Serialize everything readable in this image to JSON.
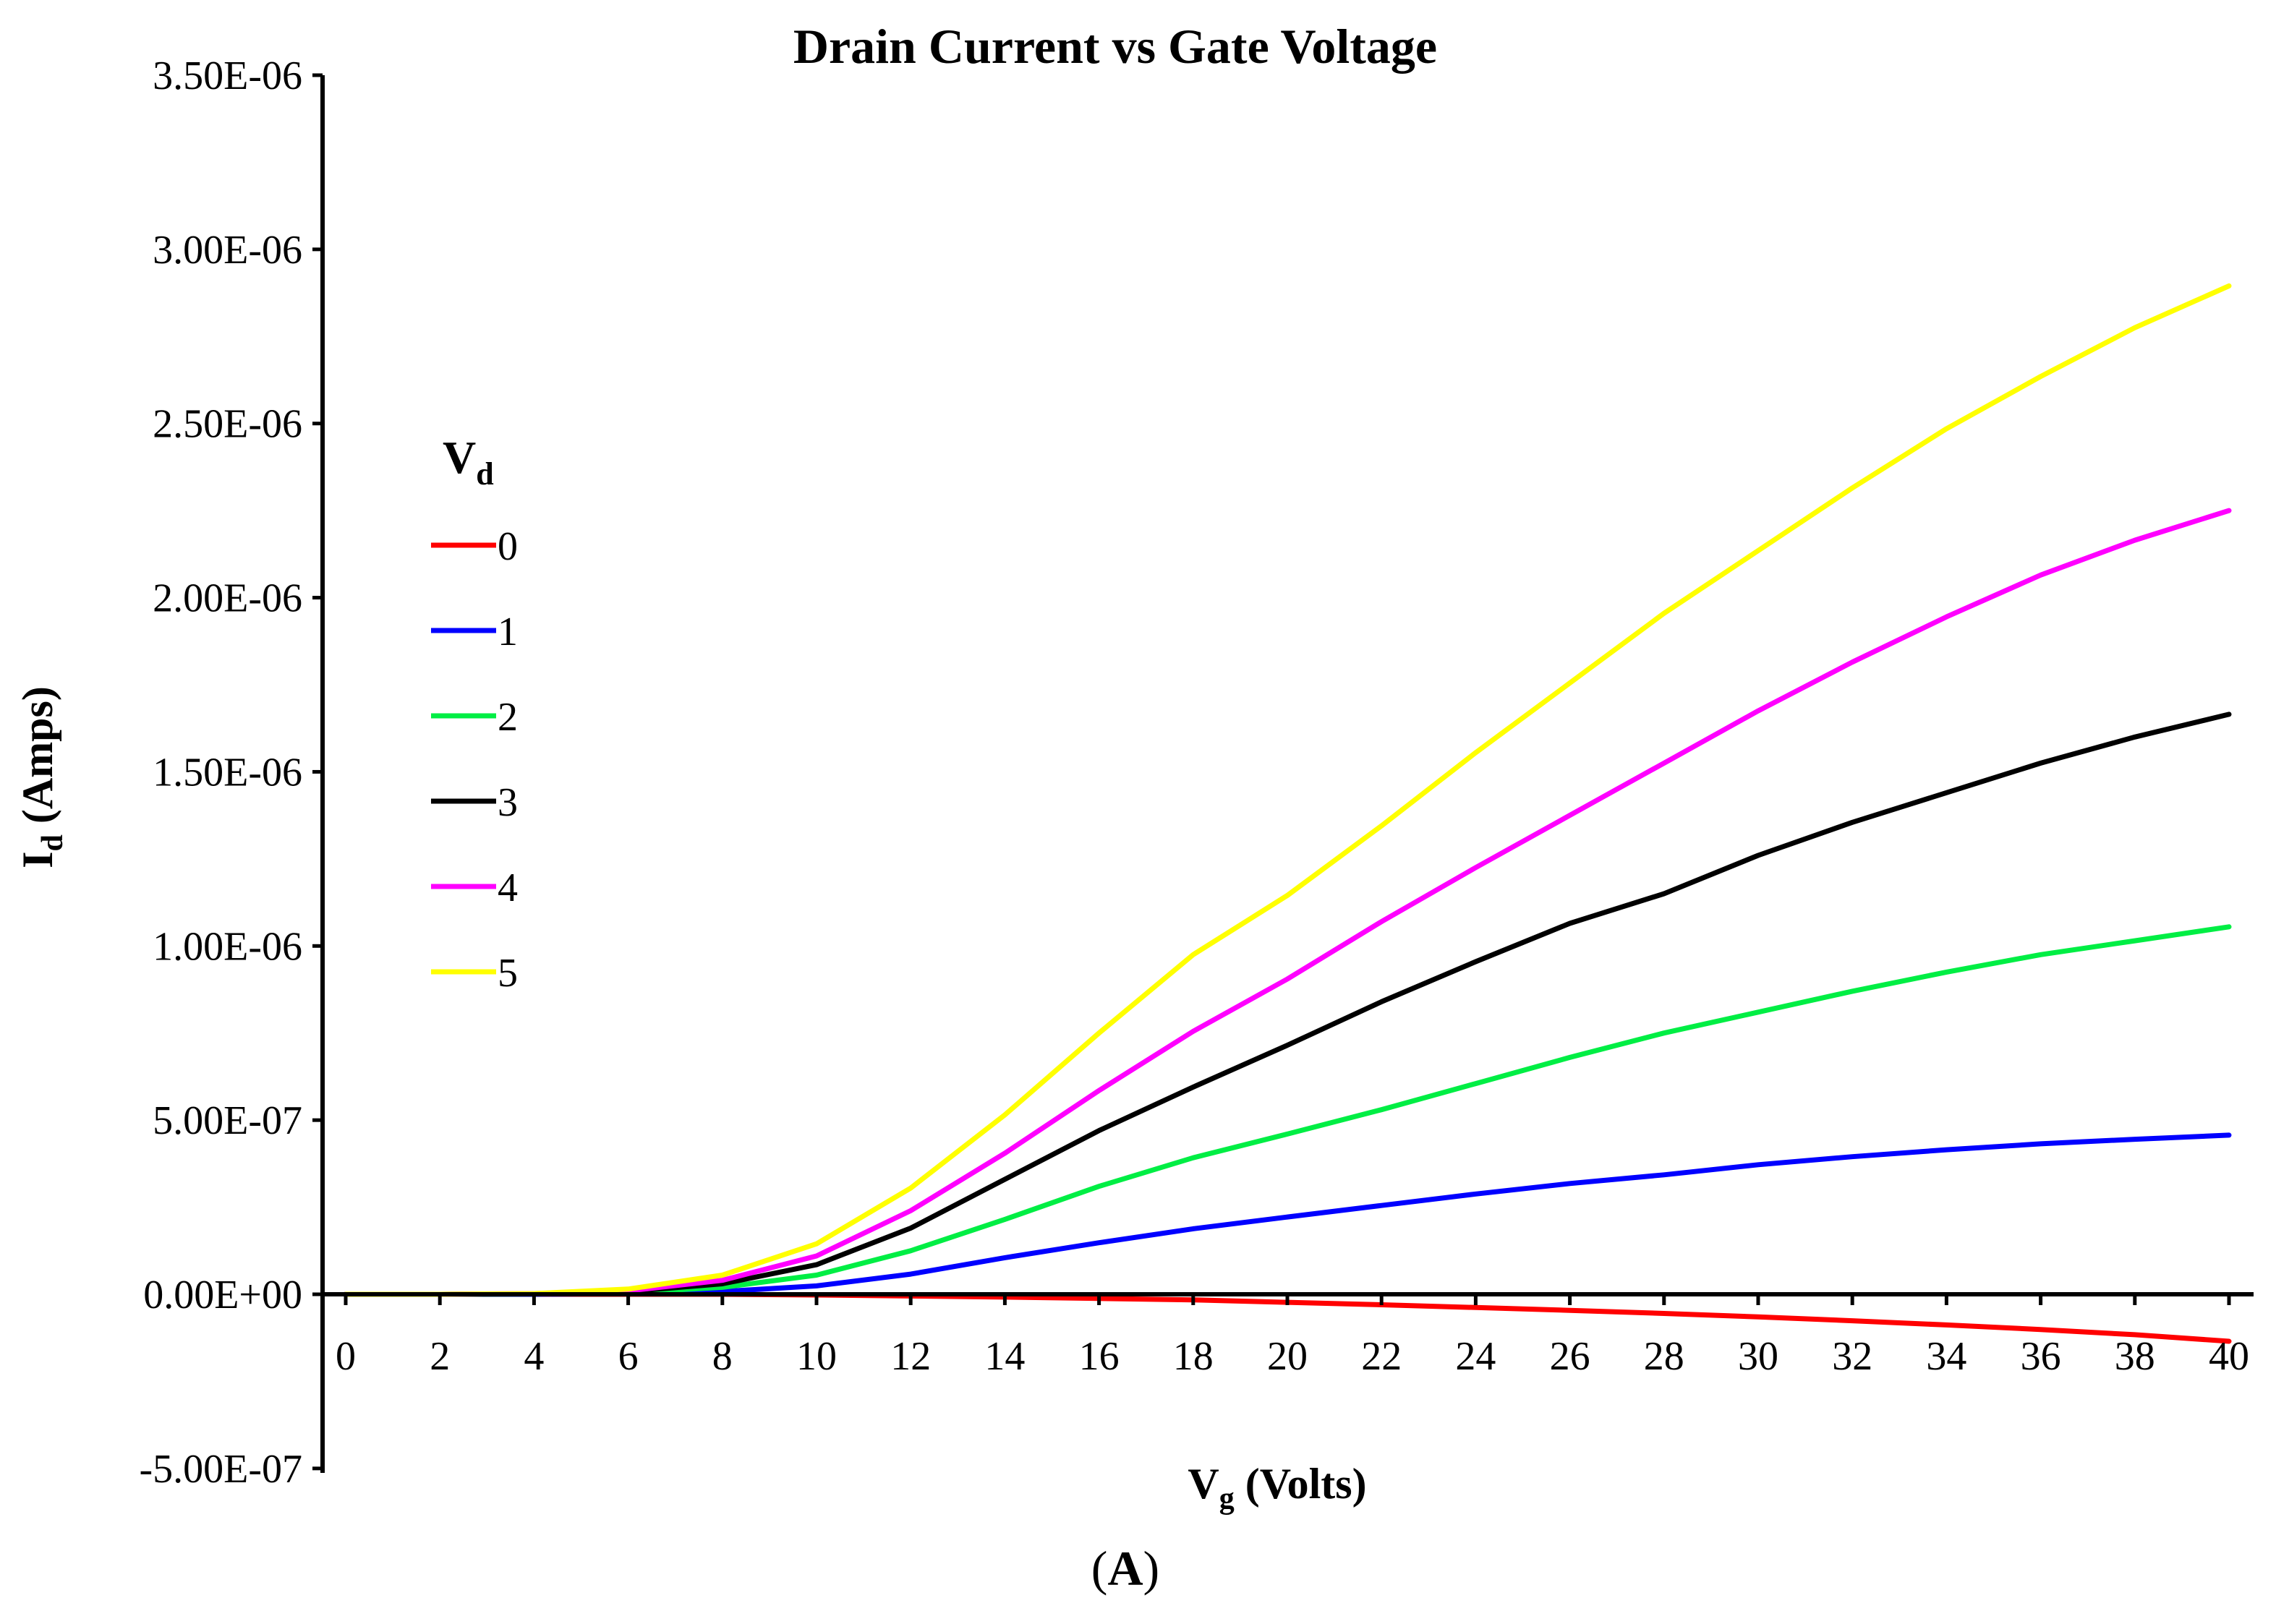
{
  "chart_data": {
    "type": "line",
    "title": "Drain Current vs Gate Voltage",
    "xlabel": {
      "main": "V",
      "sub": "g",
      "rest": " (Volts)"
    },
    "ylabel": {
      "main": "I",
      "sub": "d",
      "rest": " (Amps)"
    },
    "xlim": [
      0,
      40
    ],
    "ylim": [
      -5e-07,
      3.5e-06
    ],
    "xticks": [
      0,
      2,
      4,
      6,
      8,
      10,
      12,
      14,
      16,
      18,
      20,
      22,
      24,
      26,
      28,
      30,
      32,
      34,
      36,
      38,
      40
    ],
    "xtick_labels": [
      "0",
      "2",
      "4",
      "6",
      "8",
      "10",
      "12",
      "14",
      "16",
      "18",
      "20",
      "22",
      "24",
      "26",
      "28",
      "30",
      "32",
      "34",
      "36",
      "38",
      "40"
    ],
    "yticks": [
      -5e-07,
      0,
      5e-07,
      1e-06,
      1.5e-06,
      2e-06,
      2.5e-06,
      3e-06,
      3.5e-06
    ],
    "ytick_labels": [
      "-5.00E-07",
      "0.00E+00",
      "5.00E-07",
      "1.00E-06",
      "1.50E-06",
      "2.00E-06",
      "2.50E-06",
      "3.00E-06",
      "3.50E-06"
    ],
    "grid": false,
    "legend": {
      "title_main": "V",
      "title_sub": "d",
      "placement": "left"
    },
    "x": [
      0,
      2,
      4,
      6,
      8,
      10,
      12,
      14,
      16,
      18,
      20,
      22,
      24,
      26,
      28,
      30,
      32,
      34,
      36,
      38,
      40
    ],
    "series": [
      {
        "name": "0",
        "color": "#ff0000",
        "values": [
          0,
          0,
          0,
          0,
          0,
          -2e-09,
          -5e-09,
          -8e-09,
          -1.2e-08,
          -1.6e-08,
          -2.3e-08,
          -3e-08,
          -3.8e-08,
          -4.6e-08,
          -5.5e-08,
          -6.5e-08,
          -7.6e-08,
          -8.8e-08,
          -1.01e-07,
          -1.16e-07,
          -1.35e-07
        ]
      },
      {
        "name": "1",
        "color": "#0000ff",
        "values": [
          0,
          0,
          0,
          2e-09,
          8e-09,
          2.4e-08,
          5.8e-08,
          1.05e-07,
          1.48e-07,
          1.88e-07,
          2.22e-07,
          2.55e-07,
          2.88e-07,
          3.18e-07,
          3.43e-07,
          3.72e-07,
          3.95e-07,
          4.15e-07,
          4.32e-07,
          4.45e-07,
          4.57e-07
        ]
      },
      {
        "name": "2",
        "color": "#00ee44",
        "values": [
          0,
          0,
          1e-09,
          5e-09,
          2e-08,
          5.5e-08,
          1.25e-07,
          2.15e-07,
          3.1e-07,
          3.92e-07,
          4.6e-07,
          5.3e-07,
          6.05e-07,
          6.8e-07,
          7.5e-07,
          8.1e-07,
          8.7e-07,
          9.25e-07,
          9.75e-07,
          1.015e-06,
          1.055e-06
        ]
      },
      {
        "name": "3",
        "color": "#000000",
        "values": [
          0,
          0,
          1e-09,
          8e-09,
          3e-08,
          8.5e-08,
          1.9e-07,
          3.3e-07,
          4.7e-07,
          5.95e-07,
          7.15e-07,
          8.4e-07,
          9.55e-07,
          1.065e-06,
          1.15e-06,
          1.26e-06,
          1.355e-06,
          1.44e-06,
          1.525e-06,
          1.6e-06,
          1.665e-06
        ]
      },
      {
        "name": "4",
        "color": "#ff00ff",
        "values": [
          0,
          0,
          2e-09,
          1e-08,
          4e-08,
          1.1e-07,
          2.4e-07,
          4.05e-07,
          5.85e-07,
          7.55e-07,
          9.05e-07,
          1.07e-06,
          1.225e-06,
          1.375e-06,
          1.525e-06,
          1.675e-06,
          1.815e-06,
          1.945e-06,
          2.065e-06,
          2.165e-06,
          2.25e-06
        ]
      },
      {
        "name": "5",
        "color": "#ffff00",
        "values": [
          0,
          0,
          2e-09,
          1.5e-08,
          5.5e-08,
          1.45e-07,
          3.05e-07,
          5.15e-07,
          7.5e-07,
          9.75e-07,
          1.145e-06,
          1.345e-06,
          1.555e-06,
          1.755e-06,
          1.955e-06,
          2.135e-06,
          2.315e-06,
          2.485e-06,
          2.635e-06,
          2.775e-06,
          2.895e-06
        ]
      }
    ]
  },
  "panel_label": {
    "open": "(",
    "letter": "A",
    "close": ")"
  }
}
